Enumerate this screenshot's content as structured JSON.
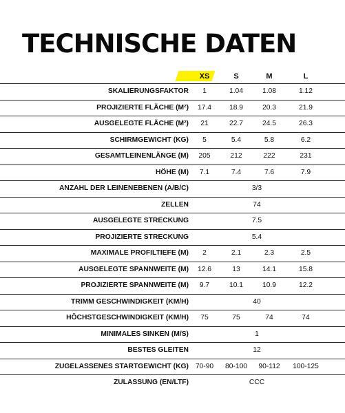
{
  "title": "TECHNISCHE DATEN",
  "highlight_color": "#fff200",
  "sizes": [
    "XS",
    "S",
    "M",
    "L"
  ],
  "rows": [
    {
      "label": "SKALIERUNGSFAKTOR",
      "values": [
        "1",
        "1.04",
        "1.08",
        "1.12"
      ]
    },
    {
      "label": "PROJIZIERTE FLÄCHE (M²)",
      "values": [
        "17.4",
        "18.9",
        "20.3",
        "21.9"
      ]
    },
    {
      "label": "AUSGELEGTE FLÄCHE (M²)",
      "values": [
        "21",
        "22.7",
        "24.5",
        "26.3"
      ]
    },
    {
      "label": "SCHIRMGEWICHT (KG)",
      "values": [
        "5",
        "5.4",
        "5.8",
        "6.2"
      ]
    },
    {
      "label": "GESAMTLEINENLÄNGE (M)",
      "values": [
        "205",
        "212",
        "222",
        "231"
      ]
    },
    {
      "label": "HÖHE (M)",
      "values": [
        "7.1",
        "7.4",
        "7.6",
        "7.9"
      ]
    },
    {
      "label": "ANZAHL DER LEINENEBENEN (A/B/C)",
      "span": "3/3"
    },
    {
      "label": "ZELLEN",
      "span": "74"
    },
    {
      "label": "AUSGELEGTE STRECKUNG",
      "span": "7.5"
    },
    {
      "label": "PROJIZIERTE STRECKUNG",
      "span": "5.4"
    },
    {
      "label": "MAXIMALE PROFILTIEFE (M)",
      "values": [
        "2",
        "2.1",
        "2.3",
        "2.5"
      ]
    },
    {
      "label": "AUSGELEGTE SPANNWEITE (M)",
      "values": [
        "12.6",
        "13",
        "14.1",
        "15.8"
      ]
    },
    {
      "label": "PROJIZIERTE SPANNWEITE (M)",
      "values": [
        "9.7",
        "10.1",
        "10.9",
        "12.2"
      ]
    },
    {
      "label": "TRIMM GESCHWINDIGKEIT (KM/H)",
      "span": "40"
    },
    {
      "label": "HÖCHSTGESCHWINDIGKEIT (KM/H)",
      "values": [
        "75",
        "75",
        "74",
        "74"
      ]
    },
    {
      "label": "MINIMALES SINKEN (M/S)",
      "span": "1"
    },
    {
      "label": "BESTES GLEITEN",
      "span": "12"
    },
    {
      "label": "ZUGELASSENES STARTGEWICHT (KG)",
      "values": [
        "70-90",
        "80-100",
        "90-112",
        "100-125"
      ]
    },
    {
      "label": "ZULASSUNG (EN/LTF)",
      "span": "CCC"
    }
  ]
}
